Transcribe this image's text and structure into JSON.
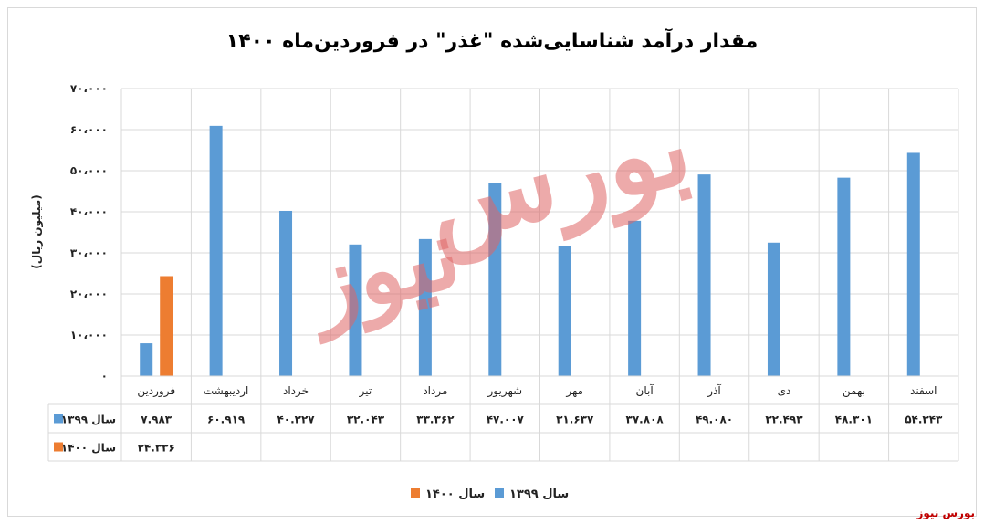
{
  "chart_data": {
    "type": "bar",
    "title": "مقدار درآمد شناسایی‌شده \"غذر\" در فروردین‌ماه ۱۴۰۰",
    "ylabel": "(میلیون ریال)",
    "ylim": [
      0,
      70000
    ],
    "yticks": [
      "۰",
      "۱۰،۰۰۰",
      "۲۰،۰۰۰",
      "۳۰،۰۰۰",
      "۴۰،۰۰۰",
      "۵۰،۰۰۰",
      "۶۰،۰۰۰",
      "۷۰،۰۰۰"
    ],
    "categories": [
      "فروردین",
      "اردیبهشت",
      "خرداد",
      "تیر",
      "مرداد",
      "شهریور",
      "مهر",
      "آبان",
      "آذر",
      "دی",
      "بهمن",
      "اسفند"
    ],
    "series": [
      {
        "name": "سال ۱۳۹۹",
        "color": "#5b9bd5",
        "values": [
          7983,
          60919,
          40227,
          32043,
          33362,
          47007,
          31637,
          37808,
          49080,
          32493,
          48301,
          54343
        ],
        "labels": [
          "۷.۹۸۳",
          "۶۰.۹۱۹",
          "۴۰.۲۲۷",
          "۳۲.۰۴۳",
          "۳۳.۳۶۲",
          "۴۷.۰۰۷",
          "۳۱.۶۳۷",
          "۳۷.۸۰۸",
          "۴۹.۰۸۰",
          "۳۲.۴۹۳",
          "۴۸.۳۰۱",
          "۵۴.۳۴۳"
        ]
      },
      {
        "name": "سال ۱۴۰۰",
        "color": "#ed7d31",
        "values": [
          24336,
          null,
          null,
          null,
          null,
          null,
          null,
          null,
          null,
          null,
          null,
          null
        ],
        "labels": [
          "۲۴.۳۳۶",
          "",
          "",
          "",
          "",
          "",
          "",
          "",
          "",
          "",
          "",
          ""
        ]
      }
    ],
    "legend": "bottom",
    "grid": true
  },
  "watermark": {
    "line1": "بورس",
    "line2": "نیوز"
  },
  "source": "بورس نیوز",
  "colors": {
    "grid": "#d9d9d9",
    "watermark": "#e06666",
    "source": "#c00000"
  }
}
